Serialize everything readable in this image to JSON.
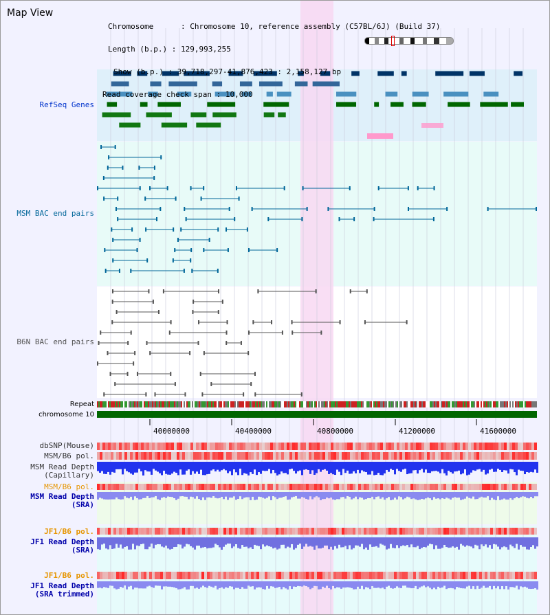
{
  "title": "Map View",
  "header": {
    "chromosome_label": "Chromosome",
    "chromosome_value": "Chromosome 10, reference assembly (C57BL/6J) (Build 37)",
    "length_label": "Length (b.p.)",
    "length_value": "129,993,255",
    "show_label": "Show (b.p.)",
    "show_value": "39,718,297-41,876,423 : 2,158,127 bp",
    "coverage_label": "Read coverage check span",
    "coverage_value": "10,000"
  },
  "tracks": {
    "refseq": {
      "label": "RefSeq Genes",
      "color": "#0033cc"
    },
    "msm_bac": {
      "label": "MSM BAC end pairs",
      "color": "#006699"
    },
    "b6n_bac": {
      "label": "B6N BAC end pairs",
      "color": "#555555"
    },
    "repeat": {
      "label": "Repeat"
    },
    "chromosome": {
      "label": "chromosome 10"
    },
    "dbsnp": {
      "label": "dbSNP(Mouse)"
    },
    "msm_b6_pol_1": {
      "label": "MSM/B6 pol."
    },
    "msm_read_depth_cap": {
      "label": "MSM Read Depth\n(Capillary)"
    },
    "msm_b6_pol_2": {
      "label": "MSM/B6 pol.",
      "color": "#e69500"
    },
    "msm_read_depth_sra": {
      "label": "MSM Read Depth\n(SRA)",
      "color": "#0000aa"
    },
    "jf1_b6_pol_1": {
      "label": "JF1/B6 pol.",
      "color": "#e69500"
    },
    "jf1_read_depth_sra": {
      "label": "JF1 Read Depth\n(SRA)",
      "color": "#0000aa"
    },
    "jf1_b6_pol_2": {
      "label": "JF1/B6 pol.",
      "color": "#e69500"
    },
    "jf1_read_depth_trim": {
      "label": "JF1 Read Depth\n(SRA trimmed)",
      "color": "#0000aa"
    }
  },
  "ruler": {
    "ticks": [
      "40000000",
      "40400000",
      "40800000",
      "41200000",
      "41600000"
    ]
  },
  "colors": {
    "highlight": "#f8d8f2",
    "refseq_bg": "#dff0fa",
    "msm_bg": "#e8fbf8",
    "chromosome_bar": "#006600"
  }
}
